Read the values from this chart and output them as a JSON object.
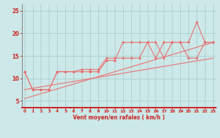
{
  "bg_color": "#cce8e8",
  "grid_color": "#aacccc",
  "line_color": "#e87878",
  "marker_color": "#e86868",
  "xlabel": "Vent moyen/en rafales ( km/h )",
  "ylabel_ticks": [
    5,
    10,
    15,
    20,
    25
  ],
  "x_ticks": [
    0,
    1,
    2,
    3,
    4,
    5,
    6,
    7,
    8,
    9,
    10,
    11,
    12,
    13,
    14,
    15,
    16,
    17,
    18,
    19,
    20,
    21,
    22,
    23
  ],
  "xlim": [
    -0.3,
    23.3
  ],
  "ylim": [
    3.5,
    26.5
  ],
  "line1_x": [
    0,
    1,
    2,
    3,
    4,
    5,
    6,
    7,
    8,
    9,
    10,
    11,
    12,
    13,
    14,
    15,
    16,
    17,
    18,
    19,
    20,
    21,
    22,
    23
  ],
  "line1_y": [
    11.5,
    7.5,
    7.5,
    7.5,
    11.5,
    11.5,
    11.5,
    11.5,
    11.5,
    11.5,
    14.0,
    14.0,
    18.0,
    18.0,
    18.0,
    18.0,
    18.0,
    14.5,
    18.0,
    18.0,
    18.0,
    22.5,
    18.0,
    18.0
  ],
  "line2_x": [
    0,
    1,
    2,
    3,
    4,
    5,
    6,
    7,
    8,
    9,
    10,
    11,
    12,
    13,
    14,
    15,
    16,
    17,
    18,
    19,
    20,
    21,
    22,
    23
  ],
  "line2_y": [
    11.5,
    7.5,
    7.5,
    7.5,
    11.5,
    11.5,
    11.5,
    12.0,
    12.0,
    12.0,
    14.5,
    14.5,
    14.5,
    14.5,
    14.5,
    18.0,
    14.5,
    18.0,
    18.0,
    18.0,
    14.5,
    14.5,
    18.0,
    18.0
  ],
  "line3_x": [
    0,
    23
  ],
  "line3_y": [
    5.5,
    18.0
  ],
  "line4_x": [
    0,
    23
  ],
  "line4_y": [
    7.5,
    14.5
  ],
  "spine_color": "#cc2222",
  "tick_color": "#cc2222",
  "label_color": "#cc2222"
}
